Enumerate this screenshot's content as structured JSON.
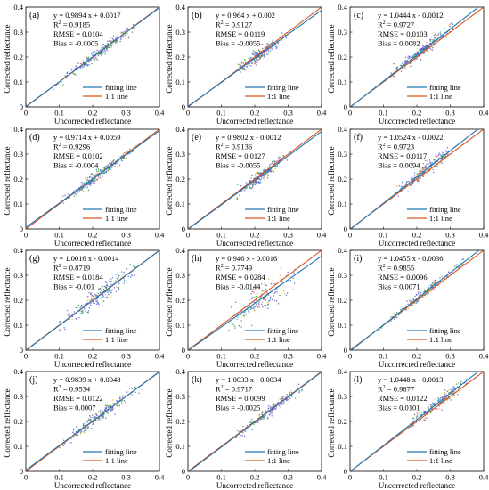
{
  "figure": {
    "legend": {
      "fit_label": "fitting line",
      "one_to_one_label": "1:1 line"
    },
    "colors": {
      "fit_line": "#1f77b4",
      "one_to_one_line": "#d95319",
      "points_primary": "#7b52c7",
      "points_secondary": "#3b7fd1",
      "points_accent": "#2ca02c",
      "points_warm": "#e8a33d",
      "axis": "#000000"
    }
  },
  "chart_data": [
    {
      "panel_label": "(a)",
      "type": "scatter",
      "xlabel": "Uncorrected reflectance",
      "ylabel": "Corrected reflectance",
      "xlim": [
        0,
        0.4
      ],
      "ylim": [
        0,
        0.4
      ],
      "xticks": [
        "0",
        "0.1",
        "0.2",
        "0.3",
        "0.4"
      ],
      "yticks": [
        "0",
        "0.1",
        "0.2",
        "0.3",
        "0.4"
      ],
      "stats": [
        "y = 0.9894 x + 0.0017",
        "R2 = 0.9185",
        "RMSE = 0.0104",
        "Bias = -0.0005"
      ],
      "fit": {
        "slope": 0.9894,
        "intercept": 0.0017
      },
      "r2": 0.9185,
      "rmse": 0.0104,
      "bias": -0.0005,
      "x_range": [
        0.08,
        0.33
      ],
      "x_center": 0.22,
      "spread": 0.0104,
      "n_points": 260,
      "grid": false
    },
    {
      "panel_label": "(b)",
      "type": "scatter",
      "xlabel": "Uncorrected reflectance",
      "ylabel": "Corrected reflectance",
      "xlim": [
        0,
        0.4
      ],
      "ylim": [
        0,
        0.4
      ],
      "xticks": [
        "0",
        "0.1",
        "0.2",
        "0.3",
        "0.4"
      ],
      "yticks": [
        "0",
        "0.1",
        "0.2",
        "0.3",
        "0.4"
      ],
      "stats": [
        "y = 0.964 x + 0.002",
        "R2 = 0.9127",
        "RMSE = 0.0119",
        "Bias = -0.0055"
      ],
      "fit": {
        "slope": 0.964,
        "intercept": 0.002
      },
      "r2": 0.9127,
      "rmse": 0.0119,
      "bias": -0.0055,
      "x_range": [
        0.15,
        0.3
      ],
      "x_center": 0.22,
      "spread": 0.0119,
      "n_points": 240,
      "grid": false
    },
    {
      "panel_label": "(c)",
      "type": "scatter",
      "xlabel": "Uncorrected reflectance",
      "ylabel": "Corrected reflectance",
      "xlim": [
        0,
        0.4
      ],
      "ylim": [
        0,
        0.4
      ],
      "xticks": [
        "0",
        "0.1",
        "0.2",
        "0.3",
        "0.4"
      ],
      "yticks": [
        "0",
        "0.1",
        "0.2",
        "0.3",
        "0.4"
      ],
      "stats": [
        "y = 1.0444 x - 0.0012",
        "R2 = 0.9727",
        "RMSE = 0.0103",
        "Bias = 0.0082"
      ],
      "fit": {
        "slope": 1.0444,
        "intercept": -0.0012
      },
      "r2": 0.9727,
      "rmse": 0.0103,
      "bias": 0.0082,
      "x_range": [
        0.12,
        0.31
      ],
      "x_center": 0.22,
      "spread": 0.0103,
      "n_points": 260,
      "grid": false
    },
    {
      "panel_label": "(d)",
      "type": "scatter",
      "xlabel": "Uncorrected reflectance",
      "ylabel": "Corrected reflectance",
      "xlim": [
        0,
        0.4
      ],
      "ylim": [
        0,
        0.4
      ],
      "xticks": [
        "0",
        "0.1",
        "0.2",
        "0.3",
        "0.4"
      ],
      "yticks": [
        "0",
        "0.1",
        "0.2",
        "0.3",
        "0.4"
      ],
      "stats": [
        "y = 0.9714 x + 0.0059",
        "R2 = 0.9296",
        "RMSE = 0.0102",
        "Bias = -0.0004"
      ],
      "fit": {
        "slope": 0.9714,
        "intercept": 0.0059
      },
      "r2": 0.9296,
      "rmse": 0.0102,
      "bias": -0.0004,
      "x_range": [
        0.1,
        0.32
      ],
      "x_center": 0.22,
      "spread": 0.0102,
      "n_points": 270,
      "grid": false
    },
    {
      "panel_label": "(e)",
      "type": "scatter",
      "xlabel": "Uncorrected reflectance",
      "ylabel": "Corrected reflectance",
      "xlim": [
        0,
        0.4
      ],
      "ylim": [
        0,
        0.4
      ],
      "xticks": [
        "0",
        "0.1",
        "0.2",
        "0.3",
        "0.4"
      ],
      "yticks": [
        "0",
        "0.1",
        "0.2",
        "0.3",
        "0.4"
      ],
      "stats": [
        "y = 0.9802 x - 0.0012",
        "R2 = 0.9136",
        "RMSE = 0.0127",
        "Bias = -0.0055"
      ],
      "fit": {
        "slope": 0.9802,
        "intercept": -0.0012
      },
      "r2": 0.9136,
      "rmse": 0.0127,
      "bias": -0.0055,
      "x_range": [
        0.14,
        0.31
      ],
      "x_center": 0.22,
      "spread": 0.0127,
      "n_points": 220,
      "grid": false
    },
    {
      "panel_label": "(f)",
      "type": "scatter",
      "xlabel": "Uncorrected reflectance",
      "ylabel": "Corrected reflectance",
      "xlim": [
        0,
        0.4
      ],
      "ylim": [
        0,
        0.4
      ],
      "xticks": [
        "0",
        "0.1",
        "0.2",
        "0.3",
        "0.4"
      ],
      "yticks": [
        "0",
        "0.1",
        "0.2",
        "0.3",
        "0.4"
      ],
      "stats": [
        "y = 1.0524 x - 0.0022",
        "R2 = 0.9723",
        "RMSE = 0.0117",
        "Bias = 0.0094"
      ],
      "fit": {
        "slope": 1.0524,
        "intercept": -0.0022
      },
      "r2": 0.9723,
      "rmse": 0.0117,
      "bias": 0.0094,
      "x_range": [
        0.12,
        0.3
      ],
      "x_center": 0.22,
      "spread": 0.0117,
      "n_points": 240,
      "grid": false
    },
    {
      "panel_label": "(g)",
      "type": "scatter",
      "xlabel": "Uncorrected reflectance",
      "ylabel": "Corrected reflectance",
      "xlim": [
        0,
        0.4
      ],
      "ylim": [
        0,
        0.4
      ],
      "xticks": [
        "0",
        "0.1",
        "0.2",
        "0.3",
        "0.4"
      ],
      "yticks": [
        "0",
        "0.1",
        "0.2",
        "0.3",
        "0.4"
      ],
      "stats": [
        "y = 1.0016 x - 0.0014",
        "R2 = 0.8719",
        "RMSE = 0.0184",
        "Bias = -0.001"
      ],
      "fit": {
        "slope": 1.0016,
        "intercept": -0.0014
      },
      "r2": 0.8719,
      "rmse": 0.0184,
      "bias": -0.001,
      "x_range": [
        0.1,
        0.33
      ],
      "x_center": 0.22,
      "spread": 0.0184,
      "n_points": 200,
      "grid": false
    },
    {
      "panel_label": "(h)",
      "type": "scatter",
      "xlabel": "Uncorrected reflectance",
      "ylabel": "Corrected reflectance",
      "xlim": [
        0,
        0.4
      ],
      "ylim": [
        0,
        0.4
      ],
      "xticks": [
        "0",
        "0.1",
        "0.2",
        "0.3",
        "0.4"
      ],
      "yticks": [
        "0",
        "0.1",
        "0.2",
        "0.3",
        "0.4"
      ],
      "stats": [
        "y = 0.946 x - 0.0016",
        "R2 = 0.7749",
        "RMSE = 0.0284",
        "Bias = -0.0144"
      ],
      "fit": {
        "slope": 0.946,
        "intercept": -0.0016
      },
      "r2": 0.7749,
      "rmse": 0.0284,
      "bias": -0.0144,
      "x_range": [
        0.12,
        0.32
      ],
      "x_center": 0.22,
      "spread": 0.0284,
      "n_points": 170,
      "grid": false
    },
    {
      "panel_label": "(i)",
      "type": "scatter",
      "xlabel": "Uncorrected reflectance",
      "ylabel": "Corrected reflectance",
      "xlim": [
        0,
        0.4
      ],
      "ylim": [
        0,
        0.4
      ],
      "xticks": [
        "0",
        "0.1",
        "0.2",
        "0.3",
        "0.4"
      ],
      "yticks": [
        "0",
        "0.1",
        "0.2",
        "0.3",
        "0.4"
      ],
      "stats": [
        "y = 1.0455 x - 0.0036",
        "R2 = 0.9855",
        "RMSE = 0.0096",
        "Bias = 0.0071"
      ],
      "fit": {
        "slope": 1.0455,
        "intercept": -0.0036
      },
      "r2": 0.9855,
      "rmse": 0.0096,
      "bias": 0.0071,
      "x_range": [
        0.08,
        0.34
      ],
      "x_center": 0.22,
      "spread": 0.0096,
      "n_points": 180,
      "grid": false
    },
    {
      "panel_label": "(j)",
      "type": "scatter",
      "xlabel": "Uncorrected reflectance",
      "ylabel": "Corrected reflectance",
      "xlim": [
        0,
        0.4
      ],
      "ylim": [
        0,
        0.4
      ],
      "xticks": [
        "0",
        "0.1",
        "0.2",
        "0.3",
        "0.4"
      ],
      "yticks": [
        "0",
        "0.1",
        "0.2",
        "0.3",
        "0.4"
      ],
      "stats": [
        "y = 0.9839 x + 0.0048",
        "R2 = 0.9534",
        "RMSE = 0.0122",
        "Bias = 0.0007"
      ],
      "fit": {
        "slope": 0.9839,
        "intercept": 0.0048
      },
      "r2": 0.9534,
      "rmse": 0.0122,
      "bias": 0.0007,
      "x_range": [
        0.1,
        0.34
      ],
      "x_center": 0.22,
      "spread": 0.0122,
      "n_points": 200,
      "grid": false
    },
    {
      "panel_label": "(k)",
      "type": "scatter",
      "xlabel": "Uncorrected reflectance",
      "ylabel": "Corrected reflectance",
      "xlim": [
        0,
        0.4
      ],
      "ylim": [
        0,
        0.4
      ],
      "xticks": [
        "0",
        "0.1",
        "0.2",
        "0.3",
        "0.4"
      ],
      "yticks": [
        "0",
        "0.1",
        "0.2",
        "0.3",
        "0.4"
      ],
      "stats": [
        "y = 1.0033 x - 0.0034",
        "R2 = 0.9717",
        "RMSE = 0.0099",
        "Bias = -0.0025"
      ],
      "fit": {
        "slope": 1.0033,
        "intercept": -0.0034
      },
      "r2": 0.9717,
      "rmse": 0.0099,
      "bias": -0.0025,
      "x_range": [
        0.14,
        0.37
      ],
      "x_center": 0.24,
      "spread": 0.0099,
      "n_points": 190,
      "grid": false
    },
    {
      "panel_label": "(l)",
      "type": "scatter",
      "xlabel": "Uncorrected reflectance",
      "ylabel": "Corrected reflectance",
      "xlim": [
        0,
        0.4
      ],
      "ylim": [
        0,
        0.4
      ],
      "xticks": [
        "0",
        "0.1",
        "0.2",
        "0.3",
        "0.4"
      ],
      "yticks": [
        "0",
        "0.1",
        "0.2",
        "0.3",
        "0.4"
      ],
      "stats": [
        "y = 1.0448 x - 0.0013",
        "R2 = 0.9877",
        "RMSE = 0.0122",
        "Bias = 0.0101"
      ],
      "fit": {
        "slope": 1.0448,
        "intercept": -0.0013
      },
      "r2": 0.9877,
      "rmse": 0.0122,
      "bias": 0.0101,
      "x_range": [
        0.18,
        0.37
      ],
      "x_center": 0.26,
      "spread": 0.0122,
      "n_points": 200,
      "grid": false
    }
  ]
}
